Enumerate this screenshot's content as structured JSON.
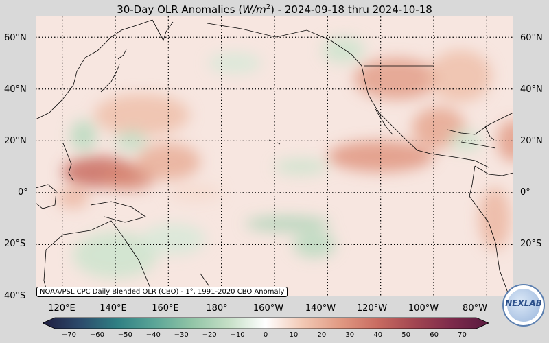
{
  "title": {
    "prefix": "30-Day OLR Anomalies (",
    "unit_base": "W/m",
    "unit_exp": "2",
    "suffix": ") - 2024-09-18 thru 2024-10-18"
  },
  "map": {
    "lon_range": [
      110,
      290
    ],
    "lat_range": [
      -40,
      68
    ],
    "grid_lons": [
      120,
      140,
      160,
      180,
      200,
      220,
      240,
      260,
      280
    ],
    "grid_lats": [
      -40,
      -20,
      0,
      20,
      40,
      60
    ],
    "anomaly_blobs": [
      {
        "lon": 134,
        "lat": 8,
        "rx": 14,
        "ry": 6,
        "value": 35
      },
      {
        "lon": 145,
        "lat": 6,
        "rx": 10,
        "ry": 5,
        "value": 28
      },
      {
        "lon": 160,
        "lat": 12,
        "rx": 12,
        "ry": 7,
        "value": 18
      },
      {
        "lon": 150,
        "lat": 30,
        "rx": 18,
        "ry": 8,
        "value": 14
      },
      {
        "lon": 240,
        "lat": 14,
        "rx": 20,
        "ry": 6,
        "value": 24
      },
      {
        "lon": 262,
        "lat": 25,
        "rx": 10,
        "ry": 8,
        "value": 20
      },
      {
        "lon": 246,
        "lat": 44,
        "rx": 16,
        "ry": 8,
        "value": 22
      },
      {
        "lon": 270,
        "lat": 45,
        "rx": 12,
        "ry": 10,
        "value": 14
      },
      {
        "lon": 290,
        "lat": 20,
        "rx": 6,
        "ry": 8,
        "value": 22
      },
      {
        "lon": 283,
        "lat": -10,
        "rx": 6,
        "ry": 12,
        "value": 16
      },
      {
        "lon": 128,
        "lat": 22,
        "rx": 5,
        "ry": 6,
        "value": -14
      },
      {
        "lon": 146,
        "lat": 20,
        "rx": 6,
        "ry": 4,
        "value": -12
      },
      {
        "lon": 210,
        "lat": 10,
        "rx": 10,
        "ry": 3,
        "value": -10
      },
      {
        "lon": 205,
        "lat": -12,
        "rx": 16,
        "ry": 3,
        "value": -16
      },
      {
        "lon": 215,
        "lat": -20,
        "rx": 8,
        "ry": 5,
        "value": -14
      },
      {
        "lon": 140,
        "lat": -24,
        "rx": 16,
        "ry": 9,
        "value": -10
      },
      {
        "lon": 162,
        "lat": -18,
        "rx": 12,
        "ry": 6,
        "value": -8
      },
      {
        "lon": 226,
        "lat": 55,
        "rx": 8,
        "ry": 5,
        "value": -10
      },
      {
        "lon": 185,
        "lat": 50,
        "rx": 10,
        "ry": 4,
        "value": -8
      },
      {
        "lon": 272,
        "lat": 20,
        "rx": 6,
        "ry": 4,
        "value": -10
      },
      {
        "lon": 124,
        "lat": -2,
        "rx": 6,
        "ry": 4,
        "value": 16
      },
      {
        "lon": 170,
        "lat": 0,
        "rx": 10,
        "ry": 3,
        "value": 8
      }
    ]
  },
  "lat_labels": [
    "60°N",
    "40°N",
    "20°N",
    "0°",
    "20°S",
    "40°S"
  ],
  "lon_labels": [
    "120°E",
    "140°E",
    "160°E",
    "180°",
    "160°W",
    "140°W",
    "120°W",
    "100°W",
    "80°W"
  ],
  "credit": "NOAA/PSL CPC Daily Blended OLR (CBO) - 1°, 1991-2020 CBO Anomaly",
  "colorbar": {
    "ticks": [
      "−70",
      "−60",
      "−50",
      "−40",
      "−30",
      "−20",
      "−10",
      "0",
      "10",
      "20",
      "30",
      "40",
      "50",
      "60",
      "70"
    ],
    "range": [
      -70,
      70
    ],
    "colors": [
      "#1f1d3f",
      "#2c4a6b",
      "#2f7f83",
      "#5aa597",
      "#90c4a6",
      "#c5dfc6",
      "#ffffff",
      "#f2c8b4",
      "#e19a83",
      "#c96c61",
      "#a24651",
      "#7d2a4b",
      "#581a3f"
    ]
  },
  "logo": {
    "text": "NEXLAB"
  }
}
